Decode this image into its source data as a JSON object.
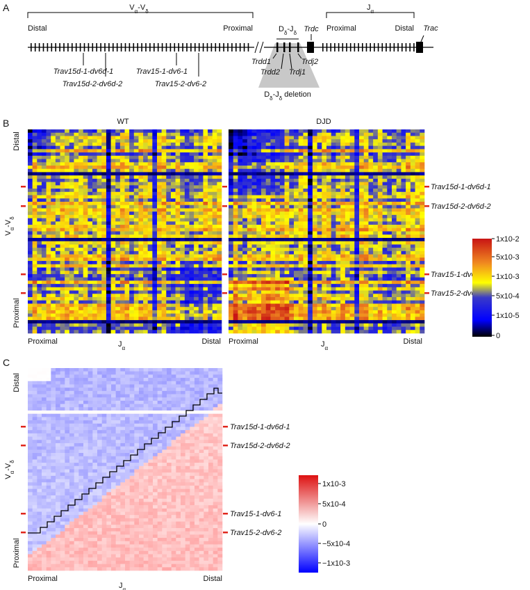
{
  "panels": {
    "a": "A",
    "b": "B",
    "c": "C"
  },
  "panel_a": {
    "va_vd": {
      "main": "V",
      "sub1": "α",
      "sep": "-V",
      "sub2": "δ"
    },
    "distal": "Distal",
    "proximal": "Proximal",
    "dd_jd": {
      "main": "D",
      "sub1": "δ",
      "sep": "-J",
      "sub2": "δ"
    },
    "trdc": "Trdc",
    "ja": {
      "main": "J",
      "sub1": "α"
    },
    "ja_proximal": "Proximal",
    "ja_distal": "Distal",
    "trac": "Trac",
    "genes": [
      "Trav15d-1-dv6d-1",
      "Trav15d-2-dv6d-2",
      "Trav15-1-dv6-1",
      "Trav15-2-dv6-2"
    ],
    "trd": [
      "Trdd1",
      "Trdd2",
      "Trdj1",
      "Trdj2"
    ],
    "deletion": {
      "main": "D",
      "sub1": "δ",
      "sep": "-J",
      "sub2": "δ",
      "tail": " deletion"
    }
  },
  "panel_b": {
    "titles": [
      "WT",
      "DJD"
    ],
    "y_distal": "Distal",
    "y_proximal": "Proximal",
    "x_proximal": "Proximal",
    "x_distal": "Distal",
    "colorbar_ticks": [
      "1x10-2",
      "5x10-3",
      "1x10-3",
      "5x10-4",
      "1x10-5",
      "0"
    ]
  },
  "panel_c": {
    "y_distal": "Distal",
    "y_proximal": "Proximal",
    "x_proximal": "Proximal",
    "x_distal": "Distal",
    "colorbar_ticks": [
      "1x10-3",
      "5x10-4",
      "0",
      "−5x10-4",
      "−1x10-3"
    ]
  },
  "axis_v": {
    "main": "V",
    "sub1": "α",
    "sep": "-V",
    "sub2": "δ"
  },
  "axis_j": {
    "main": "J",
    "sub1": "α"
  },
  "colors": {
    "red_marker": "#e0261c",
    "black": "#000000"
  }
}
